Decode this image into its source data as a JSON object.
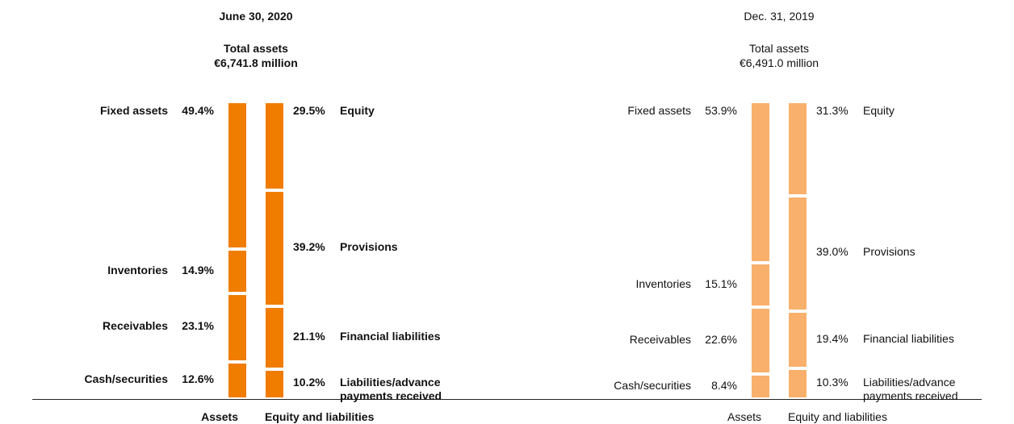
{
  "chart_data": [
    {
      "type": "stacked-bar",
      "title": "June 30, 2020",
      "subtitle": "Total assets",
      "total": "€6,741.8 million",
      "color": "#f07c00",
      "bold": true,
      "ylim": [
        0,
        100
      ],
      "columns": [
        {
          "name": "Assets",
          "labels": [
            "Fixed assets",
            "Inventories",
            "Receivables",
            "Cash/securities"
          ],
          "values": [
            49.4,
            14.9,
            23.1,
            12.6
          ],
          "value_labels": [
            "49.4%",
            "14.9%",
            "23.1%",
            "12.6%"
          ]
        },
        {
          "name": "Equity and liabilities",
          "labels": [
            "Equity",
            "Provisions",
            "Financial liabilities",
            "Liabilities/advance payments received"
          ],
          "values": [
            29.5,
            39.2,
            21.1,
            10.2
          ],
          "value_labels": [
            "29.5%",
            "39.2%",
            "21.1%",
            "10.2%"
          ]
        }
      ]
    },
    {
      "type": "stacked-bar",
      "title": "Dec. 31, 2019",
      "subtitle": "Total assets",
      "total": "€6,491.0 million",
      "color": "#f8b06c",
      "bold": false,
      "ylim": [
        0,
        100
      ],
      "columns": [
        {
          "name": "Assets",
          "labels": [
            "Fixed assets",
            "Inventories",
            "Receivables",
            "Cash/securities"
          ],
          "values": [
            53.9,
            15.1,
            22.6,
            8.4
          ],
          "value_labels": [
            "53.9%",
            "15.1%",
            "22.6%",
            "8.4%"
          ]
        },
        {
          "name": "Equity and liabilities",
          "labels": [
            "Equity",
            "Provisions",
            "Financial liabilities",
            "Liabilities/advance payments received"
          ],
          "values": [
            31.3,
            39.0,
            19.4,
            10.3
          ],
          "value_labels": [
            "31.3%",
            "39.0%",
            "19.4%",
            "10.3%"
          ]
        }
      ]
    }
  ]
}
